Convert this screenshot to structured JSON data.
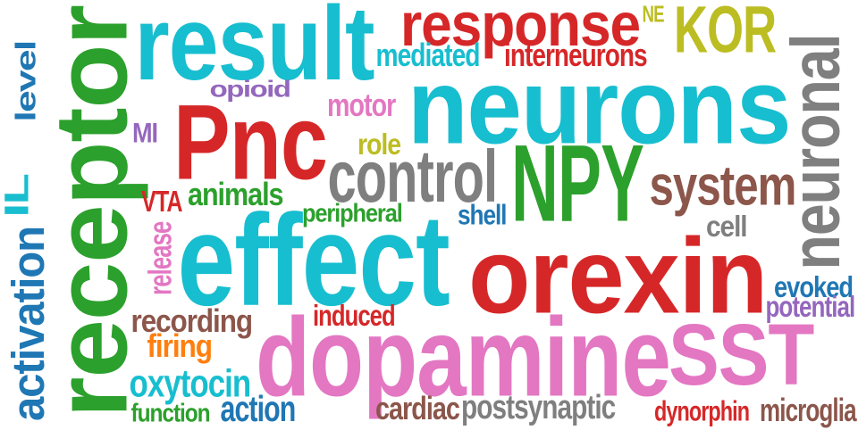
{
  "words": [
    {
      "text": "receptor",
      "color": "#2ca02c",
      "rotated": true
    },
    {
      "text": "result",
      "color": "#17becf",
      "rotated": false
    },
    {
      "text": "response",
      "color": "#d62728",
      "rotated": false
    },
    {
      "text": "NE",
      "color": "#bcbd22",
      "rotated": false
    },
    {
      "text": "KOR",
      "color": "#bcbd22",
      "rotated": false
    },
    {
      "text": "neuronal",
      "color": "#7f7f7f",
      "rotated": true
    },
    {
      "text": "level",
      "color": "#1f77b4",
      "rotated": true
    },
    {
      "text": "mediated",
      "color": "#17becf",
      "rotated": false
    },
    {
      "text": "interneurons",
      "color": "#d62728",
      "rotated": false
    },
    {
      "text": "opioid",
      "color": "#9467bd",
      "rotated": false
    },
    {
      "text": "neurons",
      "color": "#17becf",
      "rotated": false
    },
    {
      "text": "motor",
      "color": "#e377c2",
      "rotated": false
    },
    {
      "text": "MI",
      "color": "#9467bd",
      "rotated": false
    },
    {
      "text": "Pnc",
      "color": "#d62728",
      "rotated": false
    },
    {
      "text": "role",
      "color": "#bcbd22",
      "rotated": false
    },
    {
      "text": "control",
      "color": "#7f7f7f",
      "rotated": false
    },
    {
      "text": "NPY",
      "color": "#2ca02c",
      "rotated": false
    },
    {
      "text": "system",
      "color": "#8c564b",
      "rotated": false
    },
    {
      "text": "IL",
      "color": "#17becf",
      "rotated": true
    },
    {
      "text": "animals",
      "color": "#2ca02c",
      "rotated": false
    },
    {
      "text": "VTA",
      "color": "#d62728",
      "rotated": false
    },
    {
      "text": "peripheral",
      "color": "#2ca02c",
      "rotated": false
    },
    {
      "text": "shell",
      "color": "#1f77b4",
      "rotated": false
    },
    {
      "text": "cell",
      "color": "#7f7f7f",
      "rotated": false
    },
    {
      "text": "activation",
      "color": "#1f77b4",
      "rotated": true
    },
    {
      "text": "release",
      "color": "#e377c2",
      "rotated": true
    },
    {
      "text": "effect",
      "color": "#17becf",
      "rotated": false
    },
    {
      "text": "orexin",
      "color": "#d62728",
      "rotated": false
    },
    {
      "text": "evoked",
      "color": "#1f77b4",
      "rotated": false
    },
    {
      "text": "potential",
      "color": "#9467bd",
      "rotated": false
    },
    {
      "text": "recording",
      "color": "#8c564b",
      "rotated": false
    },
    {
      "text": "induced",
      "color": "#d62728",
      "rotated": false
    },
    {
      "text": "dopamine",
      "color": "#e377c2",
      "rotated": false
    },
    {
      "text": "SST",
      "color": "#e377c2",
      "rotated": false
    },
    {
      "text": "firing",
      "color": "#ff7f0e",
      "rotated": false
    },
    {
      "text": "oxytocin",
      "color": "#17becf",
      "rotated": false
    },
    {
      "text": "function",
      "color": "#2ca02c",
      "rotated": false
    },
    {
      "text": "action",
      "color": "#1f77b4",
      "rotated": false
    },
    {
      "text": "cardiac",
      "color": "#8c564b",
      "rotated": false
    },
    {
      "text": "postsynaptic",
      "color": "#7f7f7f",
      "rotated": false
    },
    {
      "text": "dynorphin",
      "color": "#d62728",
      "rotated": false
    },
    {
      "text": "microglia",
      "color": "#8c564b",
      "rotated": false
    }
  ]
}
